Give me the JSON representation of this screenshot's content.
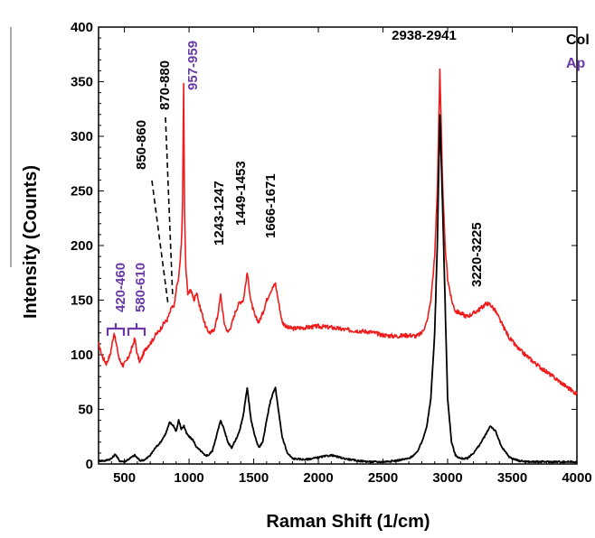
{
  "chart_data": {
    "type": "line",
    "xlabel": "Raman Shift (1/cm)",
    "ylabel": "Intensity (Counts)",
    "xlim": [
      300,
      4000
    ],
    "ylim": [
      0,
      400
    ],
    "x_ticks": [
      "500",
      "1000",
      "1500",
      "2000",
      "2500",
      "3000",
      "3500",
      "4000"
    ],
    "x_tick_values": [
      500,
      1000,
      1500,
      2000,
      2500,
      3000,
      3500,
      4000
    ],
    "y_ticks": [
      "0",
      "50",
      "100",
      "150",
      "200",
      "250",
      "300",
      "350",
      "400"
    ],
    "y_tick_values": [
      0,
      50,
      100,
      150,
      200,
      250,
      300,
      350,
      400
    ],
    "grid": false,
    "legend_position": "top-right, clipped",
    "series": [
      {
        "name": "Ap",
        "color": "#ee1c1c",
        "x": [
          300,
          330,
          360,
          390,
          420,
          440,
          460,
          490,
          520,
          550,
          580,
          600,
          620,
          650,
          680,
          710,
          740,
          770,
          800,
          830,
          850,
          870,
          880,
          890,
          900,
          920,
          940,
          950,
          958,
          965,
          975,
          990,
          1010,
          1040,
          1060,
          1080,
          1100,
          1130,
          1160,
          1190,
          1220,
          1245,
          1270,
          1300,
          1330,
          1360,
          1390,
          1420,
          1450,
          1480,
          1510,
          1540,
          1570,
          1600,
          1630,
          1650,
          1668,
          1690,
          1720,
          1760,
          1800,
          1900,
          2000,
          2100,
          2200,
          2300,
          2400,
          2500,
          2600,
          2700,
          2760,
          2800,
          2840,
          2870,
          2900,
          2920,
          2940,
          2960,
          2980,
          3000,
          3030,
          3060,
          3100,
          3150,
          3200,
          3250,
          3300,
          3330,
          3370,
          3420,
          3480,
          3550,
          3630,
          3700,
          3780,
          3860,
          3940,
          4000
        ],
        "values": [
          110,
          98,
          92,
          100,
          120,
          108,
          96,
          90,
          95,
          103,
          115,
          100,
          93,
          102,
          108,
          112,
          118,
          122,
          128,
          132,
          138,
          145,
          142,
          148,
          160,
          170,
          200,
          240,
          348,
          230,
          180,
          155,
          160,
          150,
          158,
          145,
          138,
          125,
          120,
          122,
          135,
          155,
          130,
          120,
          128,
          140,
          148,
          150,
          175,
          148,
          135,
          130,
          138,
          150,
          158,
          162,
          165,
          150,
          130,
          125,
          124,
          125,
          126,
          125,
          123,
          122,
          121,
          118,
          117,
          118,
          117,
          120,
          130,
          150,
          190,
          250,
          360,
          260,
          200,
          170,
          150,
          140,
          138,
          135,
          138,
          142,
          147,
          146,
          140,
          128,
          115,
          105,
          97,
          90,
          83,
          76,
          69,
          64
        ]
      },
      {
        "name": "Col",
        "color": "#000000",
        "x": [
          300,
          350,
          400,
          430,
          460,
          500,
          540,
          580,
          620,
          660,
          700,
          740,
          780,
          820,
          850,
          880,
          900,
          920,
          940,
          960,
          980,
          1000,
          1030,
          1060,
          1090,
          1120,
          1150,
          1180,
          1210,
          1245,
          1270,
          1300,
          1330,
          1360,
          1390,
          1420,
          1450,
          1480,
          1510,
          1540,
          1570,
          1600,
          1630,
          1650,
          1668,
          1690,
          1720,
          1760,
          1800,
          1900,
          2000,
          2100,
          2200,
          2300,
          2400,
          2500,
          2600,
          2700,
          2760,
          2800,
          2840,
          2870,
          2900,
          2920,
          2940,
          2960,
          2980,
          3000,
          3030,
          3060,
          3100,
          3150,
          3200,
          3250,
          3300,
          3330,
          3370,
          3420,
          3480,
          3550,
          3630,
          3700,
          3800,
          3900,
          4000
        ],
        "values": [
          3,
          3,
          5,
          9,
          3,
          2,
          5,
          8,
          3,
          4,
          8,
          15,
          20,
          28,
          38,
          35,
          30,
          40,
          32,
          35,
          28,
          25,
          22,
          15,
          12,
          8,
          8,
          12,
          25,
          40,
          32,
          20,
          15,
          22,
          30,
          45,
          70,
          40,
          25,
          15,
          20,
          40,
          58,
          65,
          70,
          50,
          25,
          10,
          5,
          4,
          6,
          8,
          5,
          3,
          2,
          2,
          3,
          5,
          10,
          20,
          35,
          60,
          120,
          200,
          320,
          240,
          150,
          60,
          20,
          8,
          5,
          5,
          10,
          18,
          28,
          35,
          30,
          15,
          6,
          3,
          2,
          2,
          2,
          2,
          2
        ]
      }
    ],
    "annotations": [
      {
        "text": "420-460",
        "color": "#6a3aa6",
        "x": 440,
        "y": 152
      },
      {
        "text": "580-610",
        "color": "#6a3aa6",
        "x": 595,
        "y": 152
      },
      {
        "text": "850-860",
        "color": "#000000",
        "x": 710,
        "y": 300
      },
      {
        "text": "870-880",
        "color": "#000000",
        "x": 840,
        "y": 360
      },
      {
        "text": "957-959",
        "color": "#6a3aa6",
        "x": 1000,
        "y": 382
      },
      {
        "text": "1243-1247",
        "color": "#000000",
        "x": 1245,
        "y": 245
      },
      {
        "text": "1449-1453",
        "color": "#000000",
        "x": 1450,
        "y": 265
      },
      {
        "text": "1666-1671",
        "color": "#000000",
        "x": 1668,
        "y": 240
      },
      {
        "text": "2938-2941",
        "color": "#000000",
        "x": 2940,
        "y": 390
      },
      {
        "text": "3220-3225",
        "color": "#000000",
        "x": 3250,
        "y": 205
      }
    ],
    "legend": [
      {
        "label": "Col",
        "color": "#000000"
      },
      {
        "label": "Ap",
        "color": "#6a3aa6"
      }
    ]
  }
}
